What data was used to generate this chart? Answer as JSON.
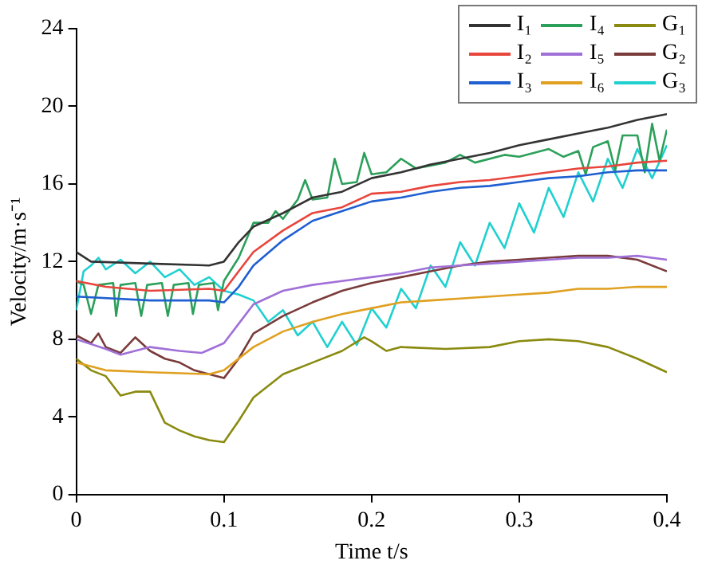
{
  "chart_data": {
    "type": "line",
    "xlabel": "Time t/s",
    "ylabel": "Velocity/m·s⁻¹",
    "xlim": [
      0,
      0.4
    ],
    "xticks": [
      0,
      0.1,
      0.2,
      0.3,
      0.4
    ],
    "ylim": [
      0,
      24
    ],
    "yticks": [
      0,
      4,
      8,
      12,
      16,
      20,
      24
    ],
    "grid": false,
    "legend": "top right",
    "series": [
      {
        "name": "I₁",
        "color": "#333333",
        "x": [
          0,
          0.01,
          0.05,
          0.09,
          0.1,
          0.11,
          0.12,
          0.14,
          0.16,
          0.18,
          0.2,
          0.22,
          0.24,
          0.26,
          0.28,
          0.3,
          0.32,
          0.34,
          0.36,
          0.38,
          0.4
        ],
        "values": [
          12.5,
          12.0,
          11.9,
          11.8,
          12.0,
          13,
          13.8,
          14.5,
          15.3,
          15.6,
          16.3,
          16.6,
          17,
          17.3,
          17.6,
          18,
          18.3,
          18.6,
          18.9,
          19.3,
          19.6
        ]
      },
      {
        "name": "I₂",
        "color": "#e8453c",
        "x": [
          0,
          0.02,
          0.05,
          0.09,
          0.1,
          0.11,
          0.12,
          0.14,
          0.16,
          0.18,
          0.2,
          0.22,
          0.24,
          0.26,
          0.28,
          0.3,
          0.32,
          0.34,
          0.36,
          0.38,
          0.4
        ],
        "values": [
          11,
          10.7,
          10.5,
          10.6,
          10.5,
          11.5,
          12.5,
          13.6,
          14.5,
          14.8,
          15.5,
          15.6,
          15.9,
          16.1,
          16.2,
          16.4,
          16.6,
          16.8,
          16.9,
          17.1,
          17.2
        ]
      },
      {
        "name": "I₃",
        "color": "#1f5fd1",
        "x": [
          0,
          0.05,
          0.09,
          0.1,
          0.11,
          0.12,
          0.14,
          0.16,
          0.18,
          0.2,
          0.22,
          0.24,
          0.26,
          0.28,
          0.3,
          0.32,
          0.34,
          0.36,
          0.38,
          0.4
        ],
        "values": [
          10.2,
          10,
          10,
          9.9,
          10.7,
          11.8,
          13.1,
          14.1,
          14.6,
          15.1,
          15.3,
          15.6,
          15.8,
          15.9,
          16.1,
          16.3,
          16.4,
          16.6,
          16.7,
          16.7
        ]
      },
      {
        "name": "I₄",
        "color": "#2ca05a",
        "x": [
          0,
          0.005,
          0.01,
          0.015,
          0.025,
          0.027,
          0.03,
          0.04,
          0.044,
          0.048,
          0.058,
          0.062,
          0.066,
          0.076,
          0.079,
          0.083,
          0.093,
          0.096,
          0.1,
          0.11,
          0.12,
          0.13,
          0.135,
          0.14,
          0.15,
          0.155,
          0.16,
          0.17,
          0.175,
          0.18,
          0.19,
          0.195,
          0.2,
          0.21,
          0.22,
          0.23,
          0.25,
          0.26,
          0.27,
          0.29,
          0.3,
          0.32,
          0.33,
          0.34,
          0.345,
          0.35,
          0.36,
          0.365,
          0.37,
          0.38,
          0.385,
          0.39,
          0.395,
          0.4
        ],
        "values": [
          11,
          10.8,
          9.3,
          10.8,
          10.9,
          9.2,
          10.8,
          10.9,
          9.2,
          10.8,
          10.9,
          9.2,
          10.8,
          10.9,
          9.3,
          10.8,
          10.9,
          9.5,
          11,
          12.2,
          14,
          14,
          14.6,
          14.2,
          15.2,
          16.2,
          15.2,
          15.3,
          17.3,
          16,
          16.1,
          17.6,
          16.5,
          16.6,
          17.3,
          16.8,
          17.1,
          17.5,
          17.1,
          17.5,
          17.4,
          17.8,
          17.4,
          17.7,
          16.5,
          17.9,
          18.2,
          16.7,
          18.5,
          18.5,
          16.6,
          19.1,
          17.2,
          18.8
        ]
      },
      {
        "name": "I₅",
        "color": "#a070d8",
        "x": [
          0,
          0.02,
          0.03,
          0.05,
          0.07,
          0.085,
          0.1,
          0.11,
          0.12,
          0.14,
          0.16,
          0.18,
          0.2,
          0.22,
          0.24,
          0.26,
          0.28,
          0.3,
          0.32,
          0.34,
          0.36,
          0.38,
          0.4
        ],
        "values": [
          8,
          7.5,
          7.2,
          7.6,
          7.4,
          7.3,
          7.8,
          8.8,
          9.8,
          10.5,
          10.8,
          11,
          11.2,
          11.4,
          11.7,
          11.8,
          11.9,
          12,
          12.1,
          12.2,
          12.2,
          12.3,
          12.1
        ]
      },
      {
        "name": "I₆",
        "color": "#e0a020",
        "x": [
          0,
          0.02,
          0.05,
          0.09,
          0.1,
          0.12,
          0.14,
          0.16,
          0.18,
          0.2,
          0.22,
          0.24,
          0.26,
          0.28,
          0.3,
          0.32,
          0.34,
          0.36,
          0.38,
          0.4
        ],
        "values": [
          6.8,
          6.4,
          6.3,
          6.2,
          6.4,
          7.6,
          8.4,
          8.9,
          9.3,
          9.6,
          9.9,
          10,
          10.1,
          10.2,
          10.3,
          10.4,
          10.6,
          10.6,
          10.7,
          10.7
        ]
      },
      {
        "name": "G₁",
        "color": "#8a8a10",
        "x": [
          0,
          0.01,
          0.02,
          0.03,
          0.04,
          0.05,
          0.06,
          0.07,
          0.08,
          0.09,
          0.1,
          0.11,
          0.12,
          0.14,
          0.16,
          0.18,
          0.195,
          0.2,
          0.21,
          0.22,
          0.25,
          0.28,
          0.3,
          0.32,
          0.34,
          0.36,
          0.38,
          0.4
        ],
        "values": [
          7,
          6.4,
          6.1,
          5.1,
          5.3,
          5.3,
          3.7,
          3.3,
          3,
          2.8,
          2.7,
          3.8,
          5,
          6.2,
          6.8,
          7.4,
          8.1,
          7.9,
          7.4,
          7.6,
          7.5,
          7.6,
          7.9,
          8,
          7.9,
          7.6,
          7,
          6.3
        ]
      },
      {
        "name": "G₂",
        "color": "#7a3b3b",
        "x": [
          0,
          0.01,
          0.015,
          0.02,
          0.03,
          0.04,
          0.05,
          0.06,
          0.07,
          0.08,
          0.09,
          0.1,
          0.11,
          0.12,
          0.14,
          0.16,
          0.18,
          0.2,
          0.22,
          0.24,
          0.26,
          0.28,
          0.3,
          0.32,
          0.34,
          0.36,
          0.38,
          0.4
        ],
        "values": [
          8.2,
          7.8,
          8.3,
          7.6,
          7.3,
          8.1,
          7.4,
          7,
          6.8,
          6.4,
          6.2,
          6,
          7,
          8.3,
          9.2,
          9.9,
          10.5,
          10.9,
          11.2,
          11.5,
          11.8,
          12,
          12.1,
          12.2,
          12.3,
          12.3,
          12.1,
          11.5
        ]
      },
      {
        "name": "G₃",
        "color": "#20d0d0",
        "x": [
          0,
          0.005,
          0.01,
          0.015,
          0.02,
          0.03,
          0.04,
          0.05,
          0.06,
          0.07,
          0.08,
          0.09,
          0.1,
          0.11,
          0.12,
          0.13,
          0.14,
          0.15,
          0.16,
          0.17,
          0.18,
          0.19,
          0.2,
          0.21,
          0.22,
          0.23,
          0.24,
          0.25,
          0.26,
          0.27,
          0.28,
          0.29,
          0.3,
          0.31,
          0.32,
          0.33,
          0.34,
          0.35,
          0.36,
          0.37,
          0.38,
          0.39,
          0.4
        ],
        "values": [
          9.5,
          11.5,
          11.8,
          12.2,
          11.6,
          12.1,
          11.4,
          12.0,
          11.2,
          11.6,
          10.8,
          11.2,
          10.5,
          10.3,
          10.0,
          8.9,
          9.5,
          8.2,
          8.9,
          7.6,
          8.9,
          7.7,
          9.6,
          8.6,
          10.6,
          9.6,
          11.8,
          10.7,
          13.0,
          11.8,
          14.0,
          12.7,
          15.0,
          13.5,
          15.8,
          14.3,
          16.6,
          15.1,
          17.3,
          15.8,
          17.8,
          16.3,
          18.0
        ]
      }
    ]
  }
}
